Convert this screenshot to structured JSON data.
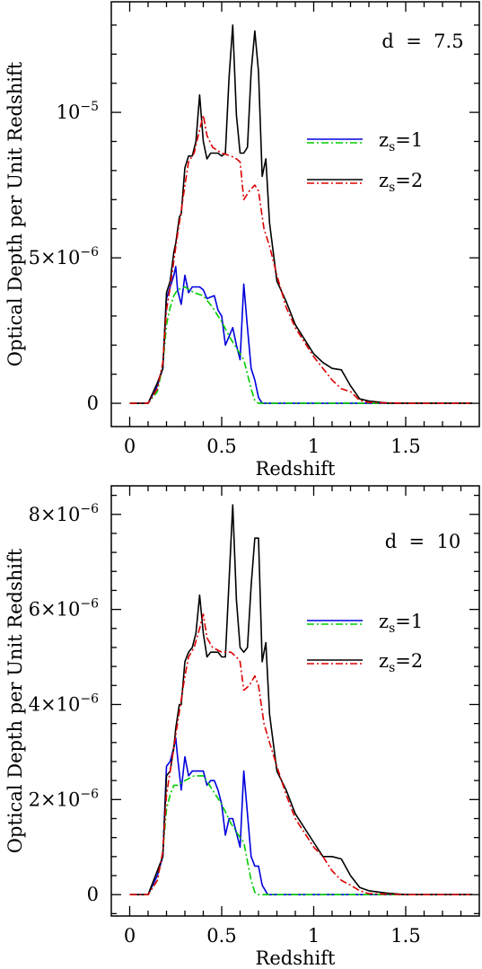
{
  "chart_data": [
    {
      "type": "line",
      "annotation": "d  =  7.5",
      "xlabel": "Redshift",
      "ylabel": "Optical Depth per Unit Redshift",
      "xlim": [
        -0.1,
        1.9
      ],
      "ylim": [
        -8e-07,
        1.38e-05
      ],
      "xticks": [
        0,
        0.5,
        1,
        1.5
      ],
      "xtick_labels": [
        "0",
        "0.5",
        "1",
        "1.5"
      ],
      "yticks": [
        0,
        5e-06,
        1e-05
      ],
      "ytick_labels": [
        {
          "mant": "0",
          "exp": ""
        },
        {
          "mant": "5×10",
          "exp": "−6"
        },
        {
          "mant": "10",
          "exp": "−5"
        }
      ],
      "legend": [
        {
          "main": "z",
          "sub": "s",
          "rest": "=1",
          "colors": [
            "#0000dd",
            "#00cc00"
          ]
        },
        {
          "main": "z",
          "sub": "s",
          "rest": "=2",
          "colors": [
            "#000000",
            "#dd0000"
          ]
        }
      ],
      "series": [
        {
          "name": "",
          "color": "#0000dd",
          "dash": "",
          "x": [
            0,
            0.05,
            0.1,
            0.15,
            0.18,
            0.2,
            0.22,
            0.24,
            0.25,
            0.26,
            0.28,
            0.3,
            0.32,
            0.34,
            0.36,
            0.38,
            0.4,
            0.42,
            0.44,
            0.46,
            0.48,
            0.5,
            0.52,
            0.54,
            0.56,
            0.58,
            0.6,
            0.62,
            0.64,
            0.66,
            0.68,
            0.7,
            0.72,
            0.75,
            0.8,
            1.0,
            1.5,
            1.86
          ],
          "y": [
            0,
            0,
            0,
            6e-07,
            1.2e-06,
            3.6e-06,
            4e-06,
            4.4e-06,
            4.7e-06,
            3.9e-06,
            3.4e-06,
            4.4e-06,
            3.8e-06,
            4e-06,
            4e-06,
            4e-06,
            3.9e-06,
            3.6e-06,
            3.65e-06,
            3.7e-06,
            3.2e-06,
            3e-06,
            2e-06,
            2.3e-06,
            2.6e-06,
            2e-06,
            1.5e-06,
            4.1e-06,
            2.6e-06,
            1.2e-06,
            8e-07,
            2e-07,
            0,
            0,
            0,
            0,
            0,
            0
          ]
        },
        {
          "name": "",
          "color": "#00cc00",
          "dash": "8,3,2,3",
          "x": [
            0,
            0.1,
            0.15,
            0.18,
            0.2,
            0.22,
            0.24,
            0.26,
            0.3,
            0.35,
            0.4,
            0.45,
            0.5,
            0.55,
            0.6,
            0.62,
            0.64,
            0.66,
            0.68,
            0.7,
            0.75,
            1.0,
            1.86
          ],
          "y": [
            0,
            0,
            4e-07,
            1.3e-06,
            2.7e-06,
            3.3e-06,
            3.7e-06,
            3.9e-06,
            4e-06,
            3.8e-06,
            3.7e-06,
            3.3e-06,
            2.8e-06,
            2.2e-06,
            1.7e-06,
            1.5e-06,
            1e-06,
            5e-07,
            1e-07,
            0,
            0,
            0,
            0
          ]
        },
        {
          "name": "",
          "color": "#000000",
          "dash": "",
          "x": [
            0,
            0.05,
            0.1,
            0.15,
            0.18,
            0.2,
            0.22,
            0.24,
            0.25,
            0.27,
            0.28,
            0.3,
            0.32,
            0.34,
            0.36,
            0.38,
            0.4,
            0.42,
            0.44,
            0.46,
            0.48,
            0.5,
            0.52,
            0.54,
            0.56,
            0.58,
            0.6,
            0.62,
            0.64,
            0.66,
            0.68,
            0.7,
            0.72,
            0.74,
            0.76,
            0.8,
            0.85,
            0.9,
            1.0,
            1.05,
            1.1,
            1.15,
            1.2,
            1.25,
            1.3,
            1.4,
            1.5,
            1.86
          ],
          "y": [
            0,
            0,
            0,
            7e-07,
            1.2e-06,
            3.8e-06,
            4.2e-06,
            5.2e-06,
            5.5e-06,
            6.4e-06,
            6.5e-06,
            8.1e-06,
            8.5e-06,
            8.5e-06,
            9e-06,
            1.06e-05,
            9e-06,
            8.4e-06,
            8.6e-06,
            8.6e-06,
            8.6e-06,
            8.5e-06,
            8.6e-06,
            1.12e-05,
            1.3e-05,
            9.9e-06,
            8.6e-06,
            8.6e-06,
            8.8e-06,
            1.14e-05,
            1.28e-05,
            1.14e-05,
            7.8e-06,
            8.4e-06,
            6.2e-06,
            4.2e-06,
            3.5e-06,
            2.7e-06,
            1.7e-06,
            1.4e-06,
            1.2e-06,
            1.15e-06,
            6e-07,
            1.5e-07,
            8e-08,
            1e-08,
            0,
            0
          ]
        },
        {
          "name": "",
          "color": "#dd0000",
          "dash": "8,3,2,3",
          "x": [
            0,
            0.1,
            0.15,
            0.18,
            0.2,
            0.22,
            0.24,
            0.26,
            0.28,
            0.3,
            0.32,
            0.35,
            0.38,
            0.4,
            0.42,
            0.45,
            0.5,
            0.55,
            0.58,
            0.6,
            0.62,
            0.65,
            0.68,
            0.7,
            0.73,
            0.76,
            0.8,
            0.85,
            0.9,
            1.0,
            1.05,
            1.1,
            1.15,
            1.2,
            1.25,
            1.3,
            1.5,
            1.86
          ],
          "y": [
            0,
            0,
            5e-07,
            1.4e-06,
            3.2e-06,
            4e-06,
            4.9e-06,
            5.8e-06,
            6.6e-06,
            7.5e-06,
            8.3e-06,
            8.6e-06,
            9.4e-06,
            9.9e-06,
            9.2e-06,
            8.8e-06,
            8.6e-06,
            8.5e-06,
            8.4e-06,
            8.3e-06,
            7e-06,
            7.3e-06,
            7.5e-06,
            7.3e-06,
            6e-06,
            5.4e-06,
            4.4e-06,
            3.3e-06,
            2.6e-06,
            1.6e-06,
            1.2e-06,
            8e-07,
            5e-07,
            4e-07,
            1e-07,
            3e-08,
            0,
            0
          ]
        }
      ]
    },
    {
      "type": "line",
      "annotation": "d  =  10",
      "xlabel": "Redshift",
      "ylabel": "Optical Depth per Unit Redshift",
      "xlim": [
        -0.1,
        1.9
      ],
      "ylim": [
        -4.5e-07,
        8.6e-06
      ],
      "xticks": [
        0,
        0.5,
        1,
        1.5
      ],
      "xtick_labels": [
        "0",
        "0.5",
        "1",
        "1.5"
      ],
      "yticks": [
        0,
        2e-06,
        4e-06,
        6e-06,
        8e-06
      ],
      "ytick_labels": [
        {
          "mant": "0",
          "exp": ""
        },
        {
          "mant": "2×10",
          "exp": "−6"
        },
        {
          "mant": "4×10",
          "exp": "−6"
        },
        {
          "mant": "6×10",
          "exp": "−6"
        },
        {
          "mant": "8×10",
          "exp": "−6"
        }
      ],
      "legend": [
        {
          "main": "z",
          "sub": "s",
          "rest": "=1",
          "colors": [
            "#0000dd",
            "#00cc00"
          ]
        },
        {
          "main": "z",
          "sub": "s",
          "rest": "=2",
          "colors": [
            "#000000",
            "#dd0000"
          ]
        }
      ],
      "series": [
        {
          "name": "",
          "color": "#0000dd",
          "dash": "",
          "x": [
            0,
            0.05,
            0.1,
            0.15,
            0.18,
            0.2,
            0.22,
            0.24,
            0.25,
            0.26,
            0.28,
            0.3,
            0.32,
            0.34,
            0.36,
            0.38,
            0.4,
            0.42,
            0.44,
            0.46,
            0.48,
            0.5,
            0.52,
            0.54,
            0.56,
            0.58,
            0.6,
            0.62,
            0.64,
            0.66,
            0.68,
            0.7,
            0.72,
            0.75,
            0.8,
            1.0,
            1.5,
            1.86
          ],
          "y": [
            0,
            0,
            0,
            4e-07,
            8e-07,
            2.7e-06,
            2.8e-06,
            3.1e-06,
            3.3e-06,
            2.9e-06,
            2.2e-06,
            2.9e-06,
            2.5e-06,
            2.6e-06,
            2.6e-06,
            2.6e-06,
            2.6e-06,
            2.3e-06,
            2.4e-06,
            2.4e-06,
            2.2e-06,
            1.9e-06,
            1.25e-06,
            1.6e-06,
            1.6e-06,
            1.3e-06,
            1e-06,
            2.6e-06,
            1.7e-06,
            8e-07,
            6e-07,
            6e-07,
            2e-07,
            0,
            0,
            0,
            0,
            0
          ]
        },
        {
          "name": "",
          "color": "#00cc00",
          "dash": "8,3,2,3",
          "x": [
            0,
            0.1,
            0.15,
            0.18,
            0.2,
            0.22,
            0.24,
            0.26,
            0.3,
            0.35,
            0.4,
            0.45,
            0.5,
            0.55,
            0.6,
            0.62,
            0.64,
            0.66,
            0.68,
            0.7,
            0.75,
            1.0,
            1.86
          ],
          "y": [
            0,
            0,
            3e-07,
            9e-07,
            1.8e-06,
            2.1e-06,
            2.3e-06,
            2.3e-06,
            2.4e-06,
            2.5e-06,
            2.5e-06,
            2.2e-06,
            1.9e-06,
            1.5e-06,
            1.2e-06,
            1.1e-06,
            7e-07,
            3e-07,
            5e-08,
            0,
            0,
            0,
            0
          ]
        },
        {
          "name": "",
          "color": "#000000",
          "dash": "",
          "x": [
            0,
            0.05,
            0.1,
            0.15,
            0.18,
            0.2,
            0.22,
            0.24,
            0.25,
            0.27,
            0.28,
            0.3,
            0.32,
            0.34,
            0.36,
            0.38,
            0.4,
            0.42,
            0.44,
            0.46,
            0.48,
            0.5,
            0.52,
            0.54,
            0.56,
            0.58,
            0.6,
            0.62,
            0.64,
            0.66,
            0.68,
            0.7,
            0.72,
            0.74,
            0.76,
            0.8,
            0.85,
            0.9,
            1.0,
            1.05,
            1.1,
            1.15,
            1.2,
            1.25,
            1.3,
            1.4,
            1.5,
            1.86
          ],
          "y": [
            0,
            0,
            0,
            5e-07,
            8e-07,
            2.5e-06,
            2.6e-06,
            3.1e-06,
            3.5e-06,
            4e-06,
            4e-06,
            4.9e-06,
            5.1e-06,
            5.2e-06,
            5.5e-06,
            6.3e-06,
            5.5e-06,
            5e-06,
            5.1e-06,
            5.1e-06,
            5.1e-06,
            5e-06,
            5e-06,
            6.6e-06,
            8.2e-06,
            6.2e-06,
            5.2e-06,
            5.1e-06,
            5.2e-06,
            6.5e-06,
            7.5e-06,
            7.5e-06,
            4.9e-06,
            5.3e-06,
            3.8e-06,
            2.6e-06,
            2.2e-06,
            1.7e-06,
            1.1e-06,
            8e-07,
            8e-07,
            7.5e-07,
            4e-07,
            1.5e-07,
            8e-08,
            3e-08,
            0,
            0
          ]
        },
        {
          "name": "",
          "color": "#dd0000",
          "dash": "8,3,2,3",
          "x": [
            0,
            0.1,
            0.15,
            0.18,
            0.2,
            0.22,
            0.24,
            0.26,
            0.28,
            0.3,
            0.32,
            0.35,
            0.38,
            0.4,
            0.42,
            0.45,
            0.5,
            0.55,
            0.58,
            0.6,
            0.62,
            0.65,
            0.68,
            0.7,
            0.73,
            0.76,
            0.8,
            0.85,
            0.9,
            1.0,
            1.05,
            1.1,
            1.15,
            1.2,
            1.25,
            1.3,
            1.5,
            1.86
          ],
          "y": [
            0,
            0,
            3e-07,
            9e-07,
            2.1e-06,
            2.6e-06,
            3.1e-06,
            3.6e-06,
            4.1e-06,
            4.6e-06,
            5e-06,
            5.2e-06,
            5.6e-06,
            5.9e-06,
            5.4e-06,
            5.2e-06,
            5.1e-06,
            5.1e-06,
            5e-06,
            4.9e-06,
            4.3e-06,
            4.4e-06,
            4.6e-06,
            4.4e-06,
            3.6e-06,
            3.2e-06,
            2.7e-06,
            2.1e-06,
            1.6e-06,
            1e-06,
            8e-07,
            5e-07,
            3e-07,
            2e-07,
            8e-08,
            2e-08,
            0,
            0
          ]
        }
      ]
    }
  ]
}
